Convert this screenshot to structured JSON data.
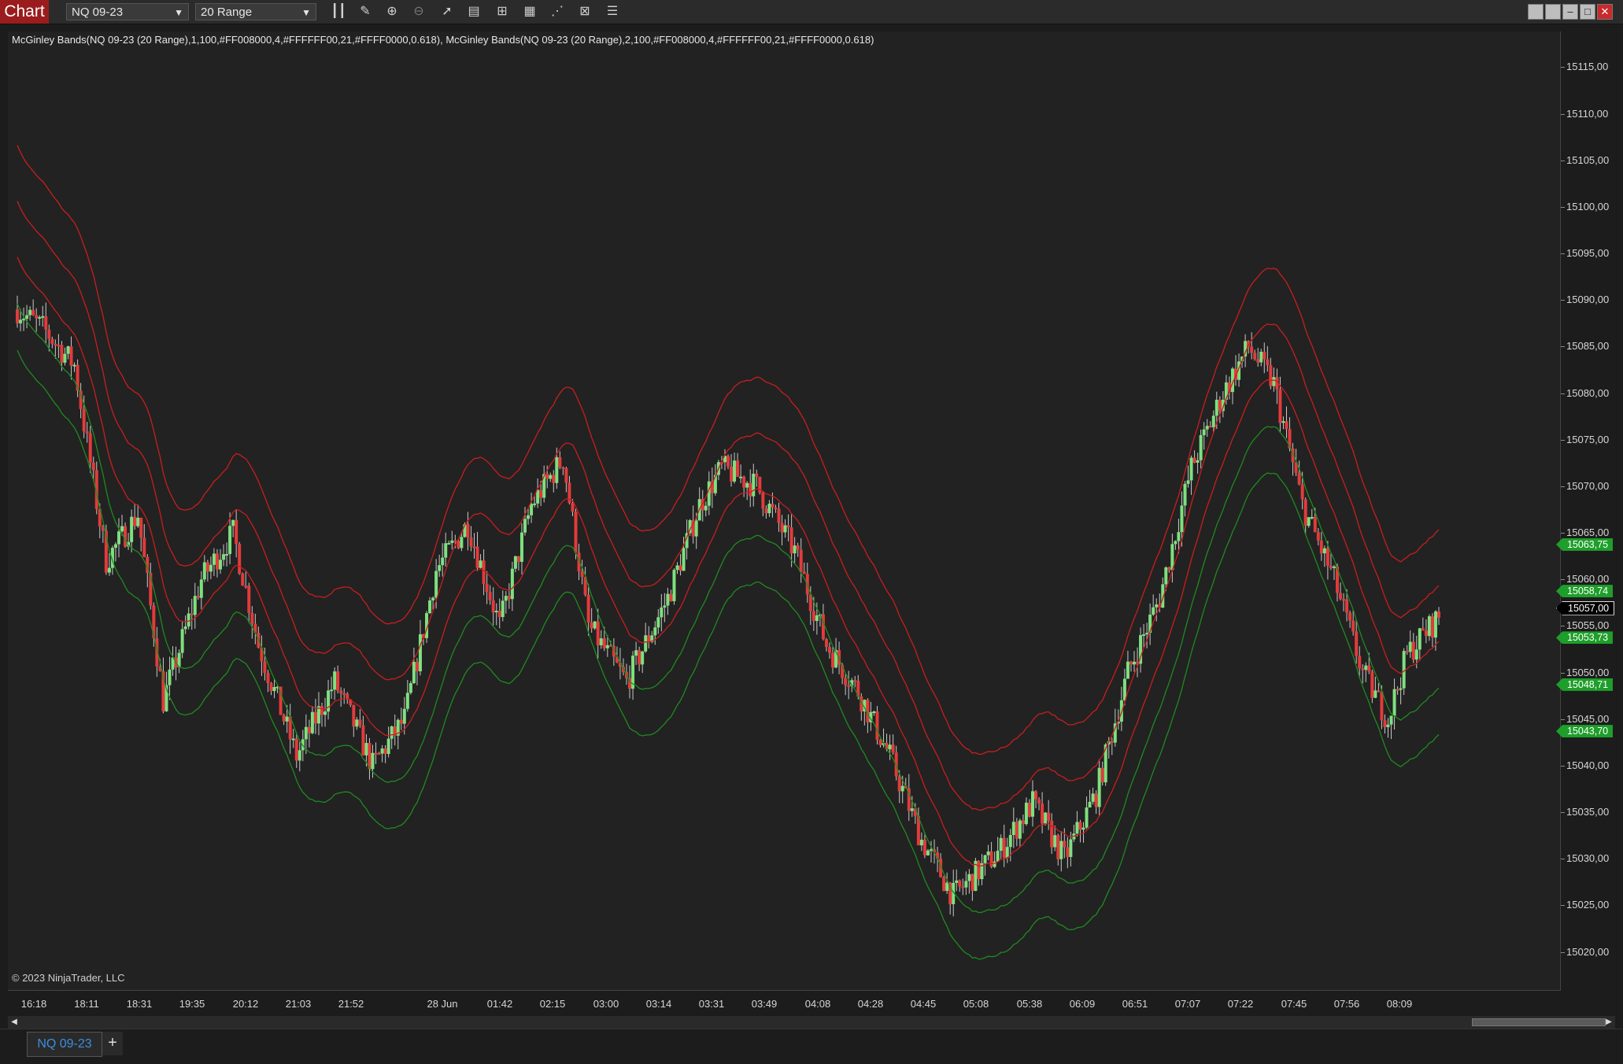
{
  "toolbar": {
    "chart_tab": "Chart",
    "instrument": "NQ 09-23",
    "period": "20 Range",
    "icons": [
      "bar-type-icon",
      "pencil-icon",
      "zoom-in-icon",
      "zoom-out-icon",
      "pointer-icon",
      "data-box-icon",
      "indicators-icon",
      "strategies-icon",
      "drawing-tools-icon",
      "properties-icon",
      "chart-trader-icon"
    ]
  },
  "indicator_label": "McGinley Bands(NQ 09-23 (20 Range),1,100,#FF008000,4,#FFFFFF00,21,#FFFF0000,0.618), McGinley Bands(NQ 09-23 (20 Range),2,100,#FF008000,4,#FFFFFF00,21,#FFFF0000,0.618)",
  "copyright": "© 2023 NinjaTrader, LLC",
  "price_axis": {
    "ticks": [
      "15115,00",
      "15110,00",
      "15105,00",
      "15100,00",
      "15095,00",
      "15090,00",
      "15085,00",
      "15080,00",
      "15075,00",
      "15070,00",
      "15065,00",
      "15060,00",
      "15055,00",
      "15050,00",
      "15045,00",
      "15040,00",
      "15035,00",
      "15030,00",
      "15025,00",
      "15020,00"
    ],
    "tick_values": [
      15115,
      15110,
      15105,
      15100,
      15095,
      15090,
      15085,
      15080,
      15075,
      15070,
      15065,
      15060,
      15055,
      15050,
      15045,
      15040,
      15035,
      15030,
      15025,
      15020
    ],
    "badges": [
      {
        "text": "15063,75",
        "value": 15063.75,
        "style": "green"
      },
      {
        "text": "15058,74",
        "value": 15058.74,
        "style": "green"
      },
      {
        "text": "15057,00",
        "value": 15057.0,
        "style": "black"
      },
      {
        "text": "15053,73",
        "value": 15053.73,
        "style": "green"
      },
      {
        "text": "15048,71",
        "value": 15048.71,
        "style": "green"
      },
      {
        "text": "15043,70",
        "value": 15043.7,
        "style": "green"
      }
    ]
  },
  "time_axis": {
    "labels": [
      "16:18",
      "18:11",
      "18:31",
      "19:35",
      "20:12",
      "21:03",
      "21:52",
      "28 Jun",
      "01:42",
      "02:15",
      "03:00",
      "03:14",
      "03:31",
      "03:49",
      "04:08",
      "04:28",
      "04:45",
      "05:08",
      "05:38",
      "06:09",
      "06:51",
      "07:07",
      "07:22",
      "07:45",
      "07:56",
      "08:09"
    ]
  },
  "colors": {
    "up": "#7ee07e",
    "down": "#e23b3b",
    "band_red": "#c81e1e",
    "band_green": "#1f8a1f",
    "background": "#222222"
  },
  "chart_data": {
    "type": "candlestick",
    "instrument": "NQ 09-23",
    "period": "20 Range",
    "y_range": [
      15017,
      15118
    ],
    "price_path": [
      [
        0,
        15089
      ],
      [
        8,
        15087
      ],
      [
        18,
        15083
      ],
      [
        28,
        15062
      ],
      [
        38,
        15067
      ],
      [
        46,
        15047
      ],
      [
        58,
        15060
      ],
      [
        68,
        15065
      ],
      [
        76,
        15053
      ],
      [
        88,
        15041
      ],
      [
        100,
        15049
      ],
      [
        112,
        15040
      ],
      [
        122,
        15045
      ],
      [
        132,
        15061
      ],
      [
        142,
        15066
      ],
      [
        152,
        15055
      ],
      [
        162,
        15068
      ],
      [
        172,
        15073
      ],
      [
        180,
        15055
      ],
      [
        192,
        15049
      ],
      [
        205,
        15058
      ],
      [
        215,
        15068
      ],
      [
        222,
        15072
      ],
      [
        233,
        15070
      ],
      [
        245,
        15063
      ],
      [
        255,
        15053
      ],
      [
        265,
        15048
      ],
      [
        275,
        15041
      ],
      [
        285,
        15032
      ],
      [
        295,
        15026
      ],
      [
        310,
        15031
      ],
      [
        320,
        15036
      ],
      [
        330,
        15030
      ],
      [
        340,
        15037
      ],
      [
        350,
        15050
      ],
      [
        360,
        15058
      ],
      [
        370,
        15072
      ],
      [
        380,
        15080
      ],
      [
        388,
        15085
      ],
      [
        396,
        15081
      ],
      [
        405,
        15068
      ],
      [
        415,
        15060
      ],
      [
        424,
        15050
      ],
      [
        432,
        15045
      ],
      [
        438,
        15052
      ],
      [
        448,
        15056
      ]
    ],
    "bands": {
      "outer_upper_offset": 10,
      "inner_upper_offset": 5,
      "center_offset": 0,
      "inner_lower_offset": -5,
      "outer_lower_offset": -10
    },
    "last_price": 15057.0
  },
  "bottom_tabs": {
    "instrument_tab": "NQ 09-23",
    "add_label": "+"
  }
}
